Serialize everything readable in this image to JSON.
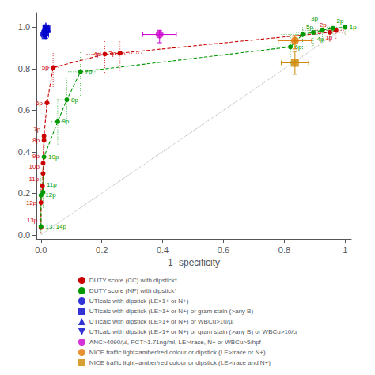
{
  "chart_data": {
    "type": "scatter",
    "xlabel": "1- specificity",
    "xlim": [
      -0.015,
      1.02
    ],
    "ylim": [
      -0.02,
      1.07
    ],
    "xticks": [
      {
        "value": 0,
        "label": "0.0"
      },
      0.2,
      0.4,
      0.6,
      0.8,
      1
    ],
    "yticks": [
      {
        "value": 0,
        "label": "0.0"
      },
      0.2,
      0.4,
      0.6,
      0.8,
      {
        "value": 1,
        "label": "1.0"
      }
    ],
    "grid": false,
    "legend": "bottom",
    "reference_line": {
      "type": "line",
      "x": [
        0,
        1
      ],
      "y": [
        0,
        1
      ],
      "color": "#aaaaaa",
      "line_style": "dotted"
    },
    "series": [
      {
        "name": "DUTY score (CC) with dipstick*",
        "type": "line",
        "line_style": "dashed",
        "marker": "circle",
        "color": "#cc0000",
        "x": [
          0.0,
          0.0,
          0.005,
          0.007,
          0.007,
          0.01,
          0.01,
          0.02,
          0.04,
          0.21,
          0.26,
          0.95,
          0.97
        ],
        "y": [
          0.035,
          0.155,
          0.235,
          0.295,
          0.345,
          0.455,
          0.475,
          0.635,
          0.805,
          0.87,
          0.875,
          0.975,
          0.985
        ],
        "y_lo": [
          0.01,
          0.09,
          0.16,
          0.21,
          0.26,
          0.35,
          0.36,
          0.52,
          0.7,
          0.78,
          0.79,
          0.93,
          0.945
        ],
        "y_hi": [
          0.09,
          0.24,
          0.32,
          0.4,
          0.44,
          0.56,
          0.58,
          0.74,
          0.89,
          0.935,
          0.94,
          1.0,
          1.0
        ],
        "x_lo": [
          0.0,
          0.0,
          0.0,
          0.002,
          0.002,
          0.005,
          0.005,
          0.01,
          0.025,
          0.15,
          0.18,
          0.88,
          0.9
        ],
        "x_hi": [
          0.005,
          0.005,
          0.012,
          0.015,
          0.015,
          0.02,
          0.02,
          0.035,
          0.06,
          0.28,
          0.33,
          1.0,
          1.0
        ],
        "labels": [
          "13p",
          "12p",
          "11p",
          "10p",
          "9p",
          "8p",
          "7p",
          "6p",
          "5p",
          "4p",
          "3p",
          "2p",
          "1p"
        ]
      },
      {
        "name": "DUTY score (NP) with dipstick*",
        "type": "line",
        "line_style": "dashed",
        "marker": "circle",
        "color": "#009900",
        "x": [
          0.0,
          0.0,
          0.007,
          0.01,
          0.055,
          0.085,
          0.13,
          0.82,
          0.86,
          0.895,
          0.925,
          0.96,
          1.0
        ],
        "y": [
          0.04,
          0.19,
          0.205,
          0.375,
          0.545,
          0.65,
          0.785,
          0.905,
          0.965,
          0.975,
          0.985,
          0.995,
          1.0
        ],
        "y_lo": [
          0.005,
          0.12,
          0.13,
          0.27,
          0.435,
          0.535,
          0.67,
          0.81,
          0.895,
          0.91,
          0.93,
          0.955,
          0.965
        ],
        "y_hi": [
          0.11,
          0.3,
          0.315,
          0.485,
          0.655,
          0.755,
          0.88,
          0.97,
          1.0,
          1.0,
          1.0,
          1.0,
          1.0
        ],
        "x_lo": [
          0.0,
          0.0,
          0.002,
          0.005,
          0.035,
          0.055,
          0.09,
          0.74,
          0.79,
          0.83,
          0.86,
          0.9,
          0.94
        ],
        "x_hi": [
          0.005,
          0.005,
          0.015,
          0.02,
          0.08,
          0.12,
          0.18,
          0.89,
          0.92,
          0.95,
          0.975,
          1.0,
          1.0
        ],
        "labels": [
          "13, 14p",
          "12p",
          "11p",
          "10p",
          "9p",
          "8p",
          "7p",
          "6p",
          "5p",
          "4p",
          "3p",
          "2p",
          "1p"
        ]
      },
      {
        "name": "UTIcalc with dipstick (LE>1+ or N+)",
        "type": "scatter",
        "marker": "circle",
        "color": "#0000cc",
        "x": [
          0.01
        ],
        "y": [
          0.965
        ],
        "xerr_lo": [
          0.007
        ],
        "xerr_hi": [
          0.007
        ],
        "yerr_lo": [
          0.02
        ],
        "yerr_hi": [
          0.01
        ]
      },
      {
        "name": "UTIcalc with dipstick (LE>1+ or N+) or gram stain (>any B)",
        "type": "scatter",
        "marker": "square",
        "color": "#0000cc",
        "x": [
          0.018
        ],
        "y": [
          0.99
        ],
        "xerr_lo": [
          0.01
        ],
        "xerr_hi": [
          0.01
        ],
        "yerr_lo": [
          0.01
        ],
        "yerr_hi": [
          0.005
        ]
      },
      {
        "name": "UTIcalc with dipstick (LE>1+ or N+) or WBCu>10/µl",
        "type": "scatter",
        "marker": "triangle-up",
        "color": "#0000cc",
        "x": [
          0.016
        ],
        "y": [
          1.002
        ],
        "xerr_lo": [
          0.009
        ],
        "xerr_hi": [
          0.009
        ],
        "yerr_lo": [
          0.005
        ],
        "yerr_hi": [
          0.003
        ]
      },
      {
        "name": "UTIcalc with dipstick (LE>1+ or N+) or gram stain (>any B) or WBCu>10/µ",
        "type": "scatter",
        "marker": "triangle-down",
        "color": "#0000cc",
        "x": [
          0.016
        ],
        "y": [
          0.962
        ],
        "xerr_lo": [
          0.009
        ],
        "xerr_hi": [
          0.009
        ],
        "yerr_lo": [
          0.015
        ],
        "yerr_hi": [
          0.01
        ]
      },
      {
        "name": "ANC>4090/µl, PCT>1.71ng/ml, LE>trace, N+ or WBCu>5/hpf",
        "type": "scatter",
        "marker": "circle",
        "color": "#cc00cc",
        "x": [
          0.39
        ],
        "y": [
          0.965
        ],
        "xerr_lo": [
          0.055
        ],
        "xerr_hi": [
          0.055
        ],
        "yerr_lo": [
          0.04
        ],
        "yerr_hi": [
          0.02
        ]
      },
      {
        "name": "NICE traffic light=amber/red colour or dipstick (LE>trace or N+)",
        "type": "scatter",
        "marker": "circle",
        "color": "#dd7700",
        "x": [
          0.835
        ],
        "y": [
          0.935
        ],
        "xerr_lo": [
          0.055
        ],
        "xerr_hi": [
          0.055
        ],
        "yerr_lo": [
          0.04
        ],
        "yerr_hi": [
          0.025
        ]
      },
      {
        "name": "NICE traffic light=amber/red colour or dipstick (LE>trace and N+)",
        "type": "scatter",
        "marker": "square",
        "color": "#cc8800",
        "x": [
          0.835
        ],
        "y": [
          0.828
        ],
        "xerr_lo": [
          0.045
        ],
        "xerr_hi": [
          0.045
        ],
        "yerr_lo": [
          0.055
        ],
        "yerr_hi": [
          0.055
        ]
      }
    ]
  }
}
